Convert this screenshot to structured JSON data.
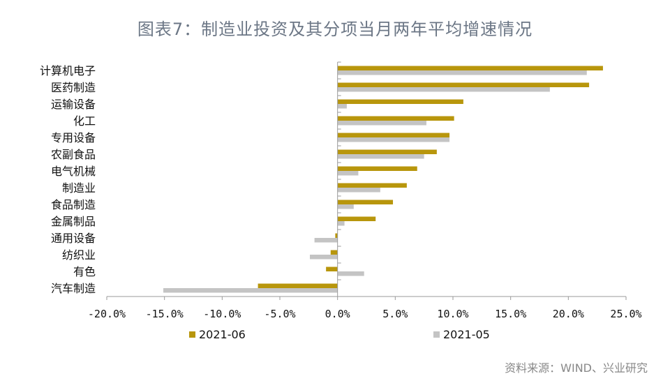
{
  "chart_data": {
    "type": "bar",
    "orientation": "horizontal",
    "title": "图表7：制造业投资及其分项当月两年平均增速情况",
    "categories": [
      "计算机电子",
      "医药制造",
      "运输设备",
      "化工",
      "专用设备",
      "农副食品",
      "电气机械",
      "制造业",
      "食品制造",
      "金属制品",
      "通用设备",
      "纺织业",
      "有色",
      "汽车制造"
    ],
    "series": [
      {
        "name": "2021-06",
        "color": "#b8960c",
        "values": [
          23.0,
          21.8,
          10.9,
          10.1,
          9.7,
          8.6,
          6.9,
          6.0,
          4.8,
          3.3,
          -0.2,
          -0.6,
          -1.0,
          -6.9
        ]
      },
      {
        "name": "2021-05",
        "color": "#c4c4c4",
        "values": [
          21.6,
          18.4,
          0.8,
          7.7,
          9.7,
          7.5,
          1.8,
          3.7,
          1.4,
          0.6,
          -2.0,
          -2.4,
          2.3,
          -15.1
        ]
      }
    ],
    "xlim": [
      -20,
      25
    ],
    "xticks": [
      -20,
      -15,
      -10,
      -5,
      0,
      5,
      10,
      15,
      20,
      25
    ],
    "xtick_labels": [
      "-20.0%",
      "-15.0%",
      "-10.0%",
      "-5.0%",
      "0.0%",
      "5.0%",
      "10.0%",
      "15.0%",
      "20.0%",
      "25.0%"
    ],
    "legend_position": "bottom",
    "grid": false,
    "source": "资料来源：WIND、兴业研究"
  }
}
